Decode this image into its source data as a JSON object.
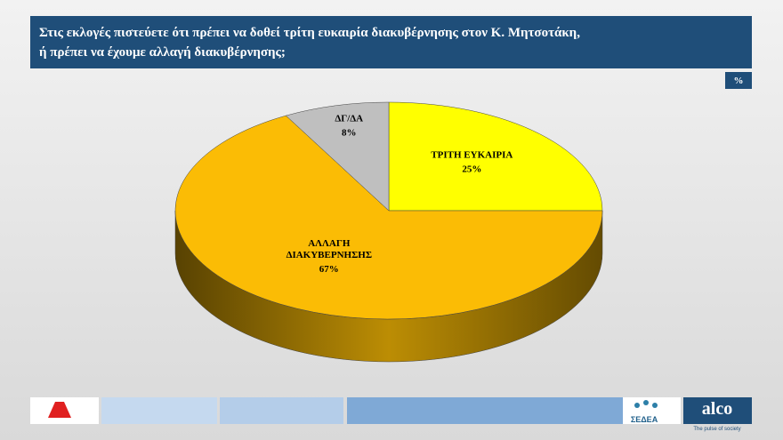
{
  "chart_data": {
    "type": "pie3d",
    "title": [
      "Στις εκλογές πιστεύετε ότι πρέπει να δοθεί τρίτη ευκαιρία διακυβέρνησης στον Κ. Μητσοτάκη,",
      "ή πρέπει να έχουμε αλλαγή  διακυβέρνησης;"
    ],
    "unit": "%",
    "categories": [
      "ΤΡΙΤΗ ΕΥΚΑΙΡΙΑ",
      "ΑΛΛΑΓΗ ΔΙΑΚΥΒΕΡΝΗΣΗΣ",
      "ΔΓ/ΔΑ"
    ],
    "values": [
      25,
      67,
      8
    ],
    "value_labels": [
      "25%",
      "67%",
      "8%"
    ],
    "colors": [
      "#ffff00",
      "#fbbc05",
      "#bfbfbf"
    ]
  },
  "footer": {
    "pollster": "ΣΕΔΕΑ",
    "brand": "alco",
    "tagline": "The pulse of society"
  }
}
